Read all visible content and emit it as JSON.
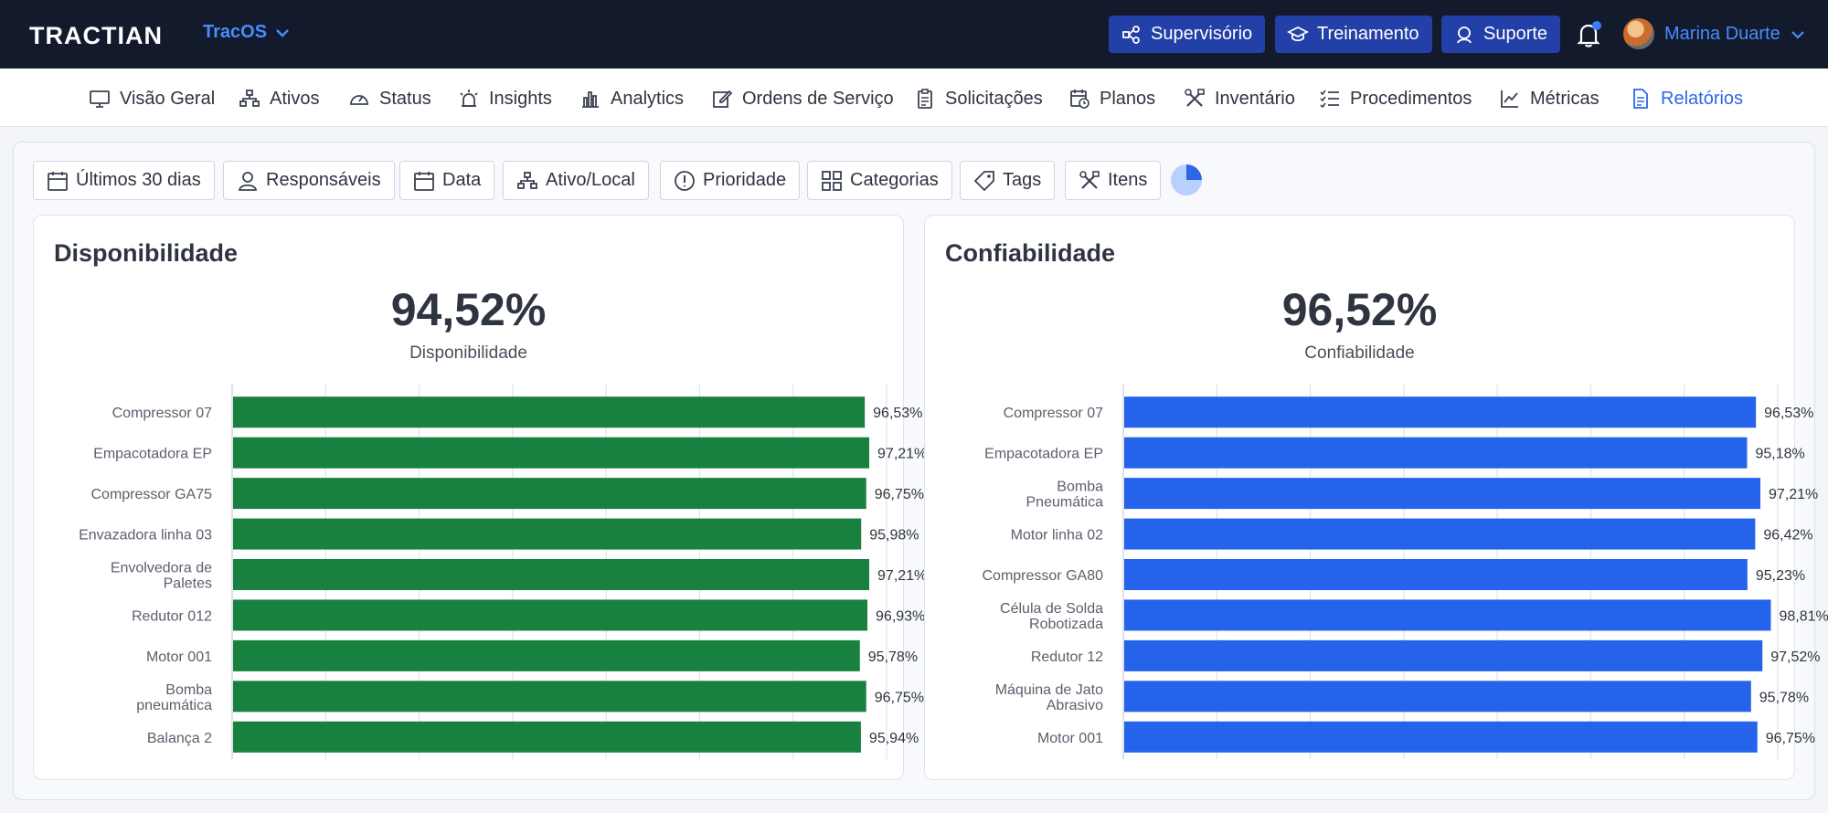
{
  "header": {
    "logo": "TRACTIAN",
    "product": "TracOS",
    "buttons": {
      "supervisorio": "Supervisório",
      "treinamento": "Treinamento",
      "suporte": "Suporte"
    },
    "user_name": "Marina Duarte"
  },
  "nav": {
    "visao_geral": "Visão Geral",
    "ativos": "Ativos",
    "status": "Status",
    "insights": "Insights",
    "analytics": "Analytics",
    "ordens": "Ordens de Serviço",
    "solicitacoes": "Solicitações",
    "planos": "Planos",
    "inventario": "Inventário",
    "procedimentos": "Procedimentos",
    "metricas": "Métricas",
    "relatorios": "Relatórios"
  },
  "filters": {
    "period": "Últimos 30 dias",
    "responsaveis": "Responsáveis",
    "data": "Data",
    "ativo_local": "Ativo/Local",
    "prioridade": "Prioridade",
    "categorias": "Categorias",
    "tags": "Tags",
    "itens": "Itens"
  },
  "panels": {
    "disponibilidade": {
      "title": "Disponibilidade",
      "value": "94,52%",
      "label": "Disponibilidade"
    },
    "confiabilidade": {
      "title": "Confiabilidade",
      "value": "96,52%",
      "label": "Confiabilidade"
    }
  },
  "chart_data": [
    {
      "type": "bar",
      "orientation": "horizontal",
      "color": "#18813f",
      "categories": [
        [
          "Compressor 07"
        ],
        [
          "Empacotadora EP"
        ],
        [
          "Compressor GA75"
        ],
        [
          "Envazadora linha 03"
        ],
        [
          "Envolvedora de",
          "Paletes"
        ],
        [
          "Redutor 012"
        ],
        [
          "Motor 001"
        ],
        [
          "Bomba",
          "pneumática"
        ],
        [
          "Balança 2"
        ]
      ],
      "values": [
        96.53,
        97.21,
        96.75,
        95.98,
        97.21,
        96.93,
        95.78,
        96.75,
        95.94
      ],
      "value_labels": [
        "96,53%",
        "97,21%",
        "96,75%",
        "95,98%",
        "97,21%",
        "96,93%",
        "95,78%",
        "96,75%",
        "95,94%"
      ],
      "xlim": [
        0,
        100
      ],
      "grid": true
    },
    {
      "type": "bar",
      "orientation": "horizontal",
      "color": "#2563eb",
      "categories": [
        [
          "Compressor 07"
        ],
        [
          "Empacotadora EP"
        ],
        [
          "Bomba",
          "Pneumática"
        ],
        [
          "Motor linha 02"
        ],
        [
          "Compressor GA80"
        ],
        [
          "Célula de Solda",
          "Robotizada"
        ],
        [
          "Redutor 12"
        ],
        [
          "Máquina de Jato",
          "Abrasivo"
        ],
        [
          "Motor 001"
        ]
      ],
      "values": [
        96.53,
        95.18,
        97.21,
        96.42,
        95.23,
        98.81,
        97.52,
        95.78,
        96.75
      ],
      "value_labels": [
        "96,53%",
        "95,18%",
        "97,21%",
        "96,42%",
        "95,23%",
        "98,81%",
        "97,52%",
        "95,78%",
        "96,75%"
      ],
      "xlim": [
        0,
        100
      ],
      "grid": true
    }
  ]
}
